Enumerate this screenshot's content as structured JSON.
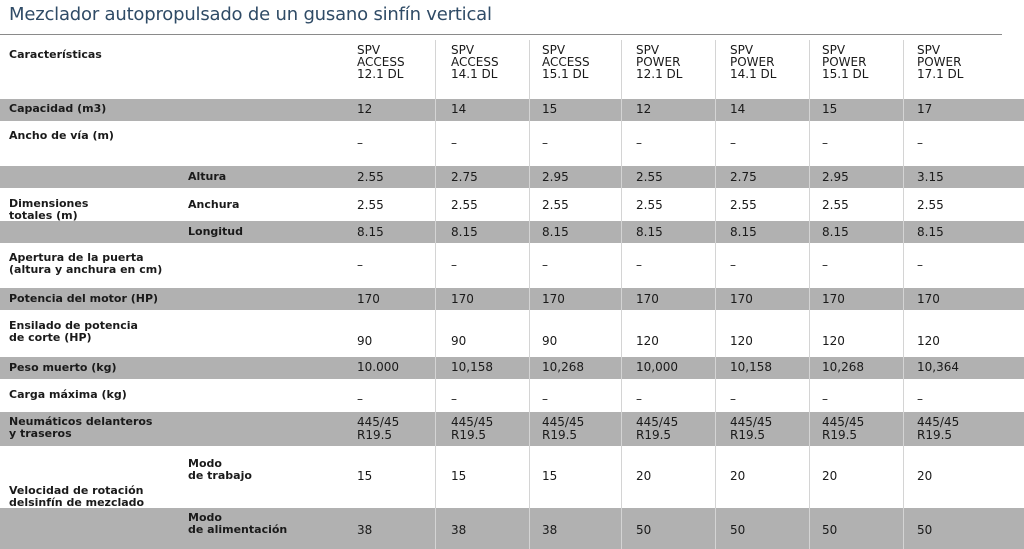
{
  "title": "Mezclador autopropulsado de un gusano sinfín vertical",
  "header_label": "Características",
  "models": [
    "SPV\nACCESS\n12.1 DL",
    "SPV\nACCESS\n14.1 DL",
    "SPV\nACCESS\n15.1 DL",
    "SPV\nPOWER\n12.1 DL",
    "SPV\nPOWER\n14.1 DL",
    "SPV\nPOWER\n15.1 DL",
    "SPV\nPOWER\n17.1 DL"
  ],
  "groups": {
    "dimensiones": "Dimensiones\ntotales (m)",
    "velocidad": "Velocidad de rotación\ndelsinfín de mezclado"
  },
  "rows": [
    {
      "label": "Capacidad (m3)",
      "values": [
        "12",
        "14",
        "15",
        "12",
        "14",
        "15",
        "17"
      ]
    },
    {
      "label": "Ancho de vía  (m)",
      "values": [
        "–",
        "–",
        "–",
        "–",
        "–",
        "–",
        "–"
      ]
    },
    {
      "label": "Altura",
      "values": [
        "2.55",
        "2.75",
        "2.95",
        "2.55",
        "2.75",
        "2.95",
        "3.15"
      ]
    },
    {
      "label": "Anchura",
      "values": [
        "2.55",
        "2.55",
        "2.55",
        "2.55",
        "2.55",
        "2.55",
        "2.55"
      ]
    },
    {
      "label": "Longitud",
      "values": [
        "8.15",
        "8.15",
        "8.15",
        "8.15",
        "8.15",
        "8.15",
        "8.15"
      ]
    },
    {
      "label": "Apertura de la puerta\n(altura y anchura en cm)",
      "values": [
        "–",
        "–",
        "–",
        "–",
        "–",
        "–",
        "–"
      ]
    },
    {
      "label": "Potencia del motor (HP)",
      "values": [
        "170",
        "170",
        "170",
        "170",
        "170",
        "170",
        "170"
      ]
    },
    {
      "label": "Ensilado de potencia\nde corte (HP)",
      "values": [
        "90",
        "90",
        "90",
        "120",
        "120",
        "120",
        "120"
      ]
    },
    {
      "label": "Peso muerto (kg)",
      "values": [
        "10.000",
        "10,158",
        "10,268",
        "10,000",
        "10,158",
        "10,268",
        "10,364"
      ]
    },
    {
      "label": "Carga máxima (kg)",
      "values": [
        "–",
        "–",
        "–",
        "–",
        "–",
        "–",
        "–"
      ]
    },
    {
      "label": "Neumáticos delanteros\ny traseros",
      "values": [
        "445/45\nR19.5",
        "445/45\nR19.5",
        "445/45\nR19.5",
        "445/45\nR19.5",
        "445/45\nR19.5",
        "445/45\nR19.5",
        "445/45\nR19.5"
      ]
    },
    {
      "label": "Modo\nde trabajo",
      "values": [
        "15",
        "15",
        "15",
        "20",
        "20",
        "20",
        "20"
      ]
    },
    {
      "label": "Modo\nde alimentación",
      "values": [
        "38",
        "38",
        "38",
        "50",
        "50",
        "50",
        "50"
      ]
    }
  ]
}
